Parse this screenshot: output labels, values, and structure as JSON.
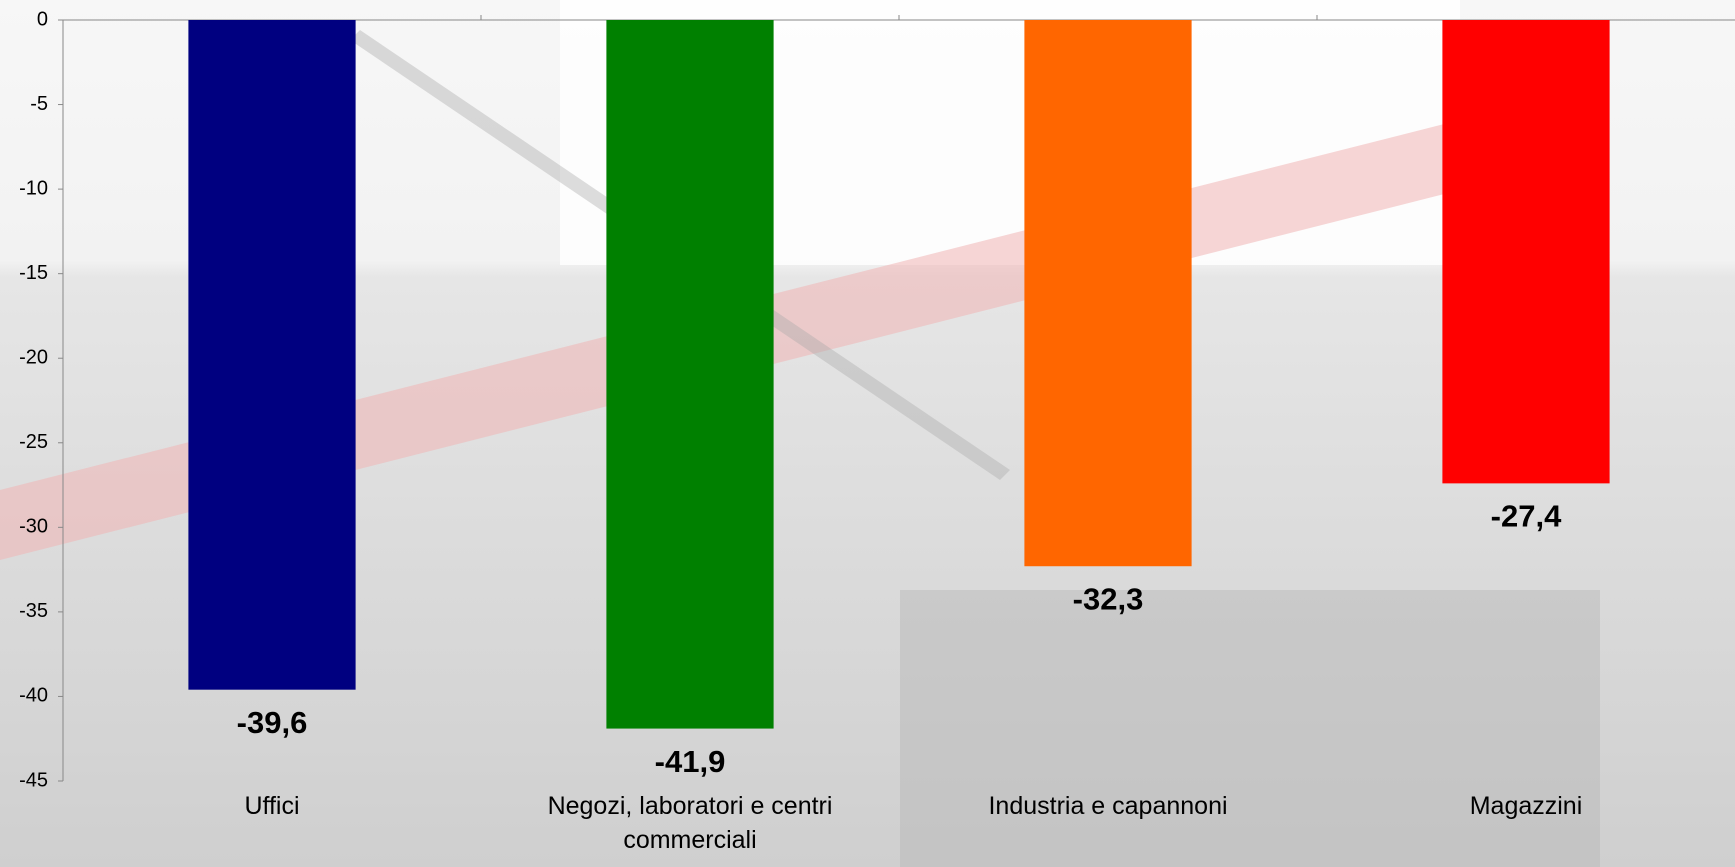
{
  "chart_data": {
    "type": "bar",
    "categories": [
      "Uffici",
      "Negozi, laboratori e centri commerciali",
      "Industria e capannoni",
      "Magazzini"
    ],
    "values": [
      -39.6,
      -41.9,
      -32.3,
      -27.4
    ],
    "value_labels": [
      "-39,6",
      "-41,9",
      "-32,3",
      "-27,4"
    ],
    "colors": [
      "#000080",
      "#008000",
      "#ff6600",
      "#ff0000"
    ],
    "ylim": [
      -45,
      0
    ],
    "yticks": [
      0,
      -5,
      -10,
      -15,
      -20,
      -25,
      -30,
      -35,
      -40,
      -45
    ],
    "grid": false
  }
}
